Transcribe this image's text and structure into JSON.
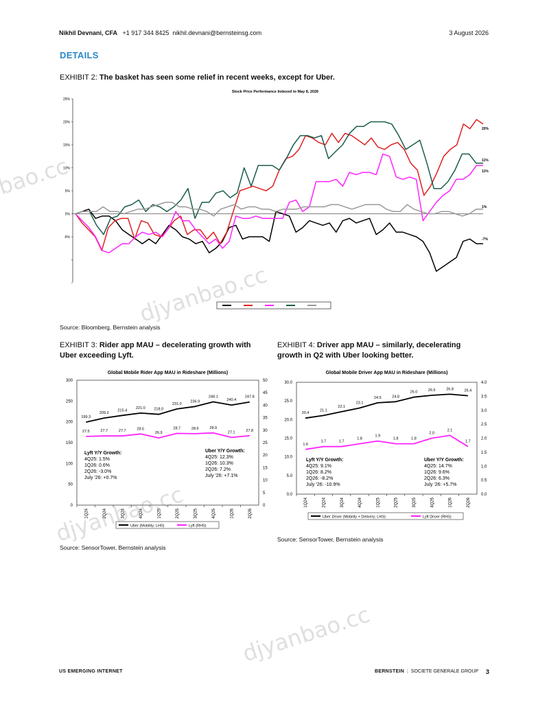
{
  "header": {
    "author": "Nikhil Devnani, CFA",
    "phone": "+1 917 344 8425",
    "email": "nikhil.devnani@bernsteinsg.com",
    "date": "3 August 2026"
  },
  "section_title": "DETAILS",
  "exhibit2": {
    "label": "EXHIBIT 2:",
    "title": "The basket has seen some relief in recent weeks, except for Uber.",
    "source": "Source: Bloomberg, Bernstein analysis"
  },
  "exhibit3": {
    "label": "EXHIBIT 3:",
    "title_line1": "Rider app MAU – decelerating growth with",
    "title_line2": "Uber exceeding Lyft.",
    "source": "Source: SensorTower, Bernstein analysis"
  },
  "exhibit4": {
    "label": "EXHIBIT 4:",
    "title_line1": "Driver app MAU – similarly, decelerating",
    "title_line2": "growth in Q2 with Uber looking better.",
    "source": "Source: SensorTower, Bernstein analysis"
  },
  "footer": {
    "left": "US EMERGING INTERNET",
    "brand": "BERNSTEIN",
    "group": "SOCIETE GENERALE GROUP",
    "page": "3"
  },
  "watermarks": [
    "bao.cc",
    "djyanbao.cc",
    "djyanbao.cc",
    "djyanbao.cc"
  ],
  "chart_data": [
    {
      "type": "line",
      "title": "Stock Price Performance Indexed to May 8, 2026",
      "ylim": [
        -15,
        25
      ],
      "y_ticks": [
        "25%",
        "20%",
        "15%",
        "10%",
        "5%",
        "0%",
        "-5%"
      ],
      "end_labels": [
        "20%",
        "11%",
        "11%",
        "1%",
        "-7%"
      ],
      "legend_placement": "bottom",
      "grid": false,
      "series": [
        {
          "color": "#000000",
          "values": [
            0,
            0.5,
            1,
            -1,
            -0.5,
            -0.5,
            -1.5,
            -3.5,
            -4.5,
            -5.5,
            -6.5,
            -5.5,
            -6.5,
            -4.5,
            -2.5,
            -3.5,
            -5,
            -5.5,
            -6.5,
            -6,
            -8.5,
            -7.5,
            -6,
            -3,
            -2.5,
            -5.5,
            -5,
            -5,
            -5,
            -6,
            0.5,
            0,
            -0.5,
            -4,
            -3,
            -1.5,
            -2,
            -2.5,
            -2,
            -4,
            -1.5,
            -1,
            -2,
            -1.5,
            -1,
            -4.5,
            -3.5,
            -2,
            -4,
            -4,
            -4.5,
            -5,
            -6,
            -8.5,
            -12.5,
            -11.5,
            -10.5,
            -9.5,
            -6,
            -5.5,
            -6.5,
            -6.5
          ]
        },
        {
          "color": "#e02020",
          "values": [
            0,
            -2,
            -3.5,
            -5,
            -8,
            -3,
            -1.5,
            -1,
            -1,
            -5.5,
            -1.5,
            -2,
            -4.5,
            -5,
            -3.5,
            -1.5,
            -0.5,
            -4.5,
            -3.5,
            -3.5,
            -5.5,
            -4,
            -6.5,
            -4,
            0.5,
            5,
            5.5,
            6,
            5.5,
            5,
            6,
            9.5,
            12,
            12.5,
            14,
            17,
            16.5,
            15.5,
            15,
            17.5,
            15.5,
            17.5,
            17,
            16,
            15,
            16.5,
            14.5,
            14,
            15,
            15.5,
            14,
            11,
            9.5,
            4,
            6,
            9,
            12.5,
            14,
            15,
            19.5,
            18.5,
            20.5,
            19.5
          ]
        },
        {
          "color": "#ff22ff",
          "values": [
            0,
            -1.5,
            -3,
            -5,
            -8,
            -8.5,
            -7.5,
            -6.5,
            -6.5,
            -5,
            -4,
            -4.5,
            -4,
            -5,
            -3,
            0.5,
            -1.5,
            -1.5,
            -3.5,
            -5,
            -6.5,
            -5.5,
            -7.5,
            -6,
            -0.5,
            -1,
            -1,
            -0.5,
            -1,
            -1,
            -1,
            -1,
            2.5,
            3,
            0.5,
            1.5,
            7,
            7,
            7,
            7.5,
            6,
            9,
            8.5,
            9,
            9,
            8.5,
            13,
            12.5,
            8,
            7.5,
            8,
            7.5,
            -1.5,
            0.5,
            2.5,
            4,
            5,
            7.5,
            7.5,
            8.5,
            10.5,
            10.5
          ]
        },
        {
          "color": "#1a5c4c",
          "values": [
            0,
            0.5,
            0.5,
            -2.5,
            -4.5,
            -1,
            -0.5,
            1.5,
            2,
            3,
            0.5,
            2,
            1.5,
            0.5,
            1.5,
            3,
            5.5,
            -1,
            2.5,
            2.5,
            4.5,
            5,
            3.5,
            4.5,
            10,
            6,
            10.5,
            10.5,
            10.5,
            9.5,
            12,
            15,
            17,
            17,
            16.5,
            17,
            12,
            13.5,
            15,
            17.5,
            19,
            19,
            20,
            20,
            20,
            19.5,
            17,
            14,
            15,
            16,
            11,
            5.5,
            5.5,
            7,
            9.5,
            13,
            13,
            11,
            11
          ]
        },
        {
          "color": "#999999",
          "values": [
            0,
            0.5,
            0.5,
            0.5,
            1.5,
            0.5,
            0.5,
            0,
            0.5,
            1,
            1,
            1.5,
            2,
            2.5,
            2.5,
            1.5,
            1.5,
            1,
            1,
            0.5,
            -0.5,
            1,
            1.5,
            2,
            1,
            1.5,
            1.5,
            1,
            1,
            0.5,
            1,
            1,
            1,
            1.5,
            1.5,
            1.5,
            1.5,
            2,
            2,
            1.5,
            1,
            1.5,
            2,
            2,
            2,
            1,
            0.5,
            0.5,
            2,
            1,
            0.5,
            0,
            0,
            0.5,
            0.5,
            0,
            -0.5,
            0,
            1,
            1
          ]
        }
      ]
    },
    {
      "type": "line",
      "title": "Global Mobile Rider App MAU in Rideshare (Millions)",
      "categories": [
        "1Q24",
        "2Q24",
        "3Q24",
        "4Q24",
        "1Q25",
        "2Q25",
        "3Q25",
        "4Q25",
        "1Q26",
        "2Q26"
      ],
      "ylim": [
        0,
        300
      ],
      "y2lim": [
        0,
        50
      ],
      "y_ticks": [
        "0",
        "50",
        "100",
        "150",
        "200",
        "250",
        "300"
      ],
      "y2_ticks": [
        "0",
        "5",
        "10",
        "15",
        "20",
        "25",
        "30",
        "35",
        "40",
        "45",
        "50"
      ],
      "series": [
        {
          "name": "Uber (Mobility; LHS)",
          "color": "#000000",
          "axis": "left",
          "values": [
            199.3,
            209.2,
            215.4,
            221.0,
            218.0,
            231.0,
            236.9,
            248.1,
            240.4,
            247.8
          ],
          "labels": [
            "199.3",
            "209.2",
            "215.4",
            "221.0",
            "218.0",
            "231.0",
            "236.9",
            "248.1",
            "240.4",
            "247.8"
          ]
        },
        {
          "name": "Lyft (RHS)",
          "color": "#ff22ff",
          "axis": "right",
          "values": [
            27.5,
            27.7,
            27.7,
            28.5,
            26.9,
            28.7,
            28.6,
            28.9,
            27.1,
            27.8
          ],
          "labels": [
            "27.5",
            "27.7",
            "27.7",
            "28.5",
            "26.9",
            "28.7",
            "28.6",
            "28.9",
            "27.1",
            "27.8"
          ]
        }
      ],
      "annotations": {
        "lyft": {
          "title": "Lyft Y/Y Growth:",
          "lines": [
            "4Q25: 1.5%",
            "1Q26: 0.6%",
            "2Q26: -3.0%",
            "July '26: +0.7%"
          ]
        },
        "uber": {
          "title": "Uber Y/Y Growth:",
          "lines": [
            "4Q25: 12.3%",
            "1Q26: 10.3%",
            "2Q26: 7.2%",
            "July '26: +7.1%"
          ]
        }
      }
    },
    {
      "type": "line",
      "title": "Global Mobile Driver App MAU in Rideshare (Millions)",
      "categories": [
        "1Q24",
        "2Q24",
        "3Q24",
        "4Q24",
        "1Q25",
        "2Q25",
        "3Q25",
        "4Q25",
        "1Q26",
        "2Q26"
      ],
      "ylim": [
        0,
        30
      ],
      "y2lim": [
        0,
        4
      ],
      "y_ticks": [
        "0.0",
        "5.0",
        "10.0",
        "15.0",
        "20.0",
        "25.0",
        "30.0"
      ],
      "y2_ticks": [
        "0.0",
        "0.5",
        "1.0",
        "1.5",
        "2.0",
        "2.5",
        "3.0",
        "3.5",
        "4.0"
      ],
      "series": [
        {
          "name": "Uber Driver (Mobility + Delivery; LHS)",
          "color": "#000000",
          "axis": "left",
          "values": [
            20.4,
            21.1,
            22.1,
            23.1,
            24.5,
            24.8,
            26.0,
            26.5,
            26.8,
            26.4
          ],
          "labels": [
            "20.4",
            "21.1",
            "22.1",
            "23.1",
            "24.5",
            "24.8",
            "26.0",
            "26.5",
            "26.8",
            "26.4"
          ]
        },
        {
          "name": "Lyft Driver (RHS)",
          "color": "#ff22ff",
          "axis": "right",
          "values": [
            1.6,
            1.7,
            1.7,
            1.8,
            1.9,
            1.8,
            1.8,
            2.0,
            2.1,
            1.7
          ],
          "labels": [
            "1.6",
            "1.7",
            "1.7",
            "1.8",
            "1.9",
            "1.8",
            "1.8",
            "2.0",
            "2.1",
            "1.7"
          ]
        }
      ],
      "annotations": {
        "lyft": {
          "title": "Lyft Y/Y Growth:",
          "lines": [
            "4Q25: 9.1%",
            "1Q26: 8.2%",
            "2Q26: -8.2%",
            "July '26: -10.9%"
          ]
        },
        "uber": {
          "title": "Uber Y/Y Growth:",
          "lines": [
            "4Q25: 14.7%",
            "1Q26: 9.6%",
            "2Q26: 6.3%",
            "July '26: +5.7%"
          ]
        }
      }
    }
  ]
}
